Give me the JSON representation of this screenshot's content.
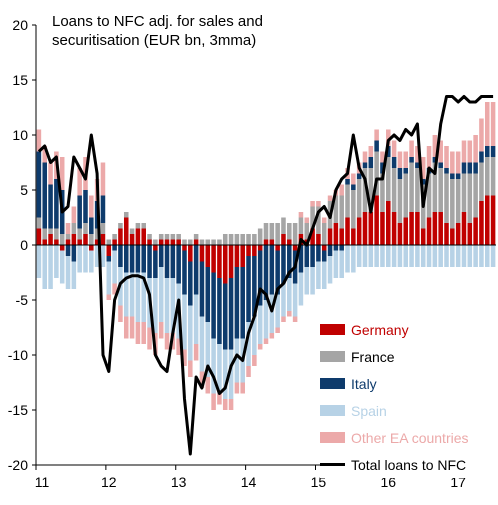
{
  "chart_data": {
    "type": "bar",
    "stacked": true,
    "title_lines": [
      "Loans to NFC adj. for sales and",
      "securitisation (EUR bn, 3mma)"
    ],
    "ylim": [
      -20,
      20
    ],
    "yticks": [
      20,
      15,
      10,
      5,
      0,
      -5,
      -10,
      -15,
      -20
    ],
    "x_year_labels": [
      "11",
      "12",
      "13",
      "14",
      "15",
      "16",
      "17"
    ],
    "x_start_year": 2011,
    "grid": false,
    "legend_position": "bottom-right",
    "series": [
      {
        "name": "Germany",
        "color": "#c00000",
        "values": [
          1.5,
          0.5,
          1.0,
          0.5,
          -0.5,
          0.5,
          1.0,
          0.5,
          1.0,
          -0.5,
          0.5,
          1.0,
          -1.0,
          0.5,
          1.5,
          2.5,
          1.0,
          1.5,
          1.5,
          0.5,
          -0.5,
          0.5,
          0.5,
          0.5,
          0.5,
          -0.5,
          -1.5,
          0.5,
          -1.5,
          -2.0,
          -2.5,
          -3.0,
          -3.5,
          -3.0,
          -2.0,
          -2.0,
          -1.0,
          -1.0,
          -0.5,
          0.5,
          0.5,
          -0.5,
          1.0,
          0.5,
          -0.5,
          1.0,
          0.5,
          1.5,
          1.0,
          -0.5,
          1.5,
          2.0,
          1.5,
          2.5,
          1.5,
          2.5,
          3.0,
          3.0,
          4.5,
          3.0,
          4.0,
          3.0,
          2.0,
          2.5,
          3.0,
          3.0,
          1.5,
          2.5,
          3.0,
          3.0,
          2.0,
          1.5,
          2.0,
          3.0,
          2.0,
          2.5,
          4.0,
          4.5,
          4.5
        ]
      },
      {
        "name": "France",
        "color": "#a5a5a5",
        "values": [
          1.0,
          1.0,
          0.5,
          1.0,
          1.0,
          0.5,
          1.0,
          1.0,
          1.0,
          1.0,
          1.0,
          1.0,
          0.5,
          0.5,
          0.5,
          0.5,
          0.5,
          0.5,
          0.5,
          0.5,
          0.5,
          0.5,
          0.5,
          0.5,
          0.5,
          0.5,
          0.5,
          0.5,
          0.5,
          0.5,
          0.5,
          0.5,
          1.0,
          1.0,
          1.0,
          1.0,
          1.0,
          1.0,
          1.5,
          1.5,
          1.5,
          2.0,
          1.5,
          1.5,
          2.0,
          1.5,
          1.5,
          2.0,
          2.5,
          2.0,
          2.5,
          2.5,
          3.0,
          3.0,
          3.5,
          3.5,
          4.0,
          4.0,
          4.0,
          3.5,
          4.0,
          4.0,
          4.0,
          4.0,
          4.5,
          4.0,
          4.0,
          4.0,
          4.5,
          4.0,
          4.5,
          4.5,
          4.0,
          3.5,
          4.5,
          4.0,
          3.5,
          3.5,
          3.5
        ]
      },
      {
        "name": "Italy",
        "color": "#0e3b6c",
        "values": [
          6.0,
          6.0,
          4.0,
          4.5,
          4.0,
          -1.0,
          -1.5,
          3.0,
          3.0,
          1.5,
          2.5,
          2.5,
          -0.5,
          -0.5,
          -2.0,
          -2.5,
          -2.5,
          -2.5,
          -2.5,
          -3.0,
          -2.5,
          -2.0,
          -3.0,
          -3.0,
          -3.5,
          -4.0,
          -4.0,
          -4.5,
          -5.0,
          -5.0,
          -6.0,
          -6.0,
          -6.0,
          -6.5,
          -6.5,
          -6.5,
          -6.0,
          -5.5,
          -5.0,
          -5.0,
          -4.5,
          -4.0,
          -3.5,
          -3.0,
          -3.0,
          -2.5,
          -2.0,
          -2.0,
          -1.5,
          -1.0,
          -1.0,
          -0.5,
          -0.5,
          0.5,
          0.5,
          0.5,
          0.5,
          1.0,
          1.0,
          1.0,
          1.0,
          1.0,
          1.0,
          0.5,
          0.5,
          0.5,
          0.5,
          0.5,
          0.5,
          0.5,
          0.5,
          0.5,
          0.5,
          1.0,
          1.0,
          1.0,
          1.0,
          1.0,
          1.0
        ]
      },
      {
        "name": "Spain",
        "color": "#b7d2e6",
        "values": [
          -3.0,
          -4.0,
          -4.0,
          -3.0,
          -3.0,
          -3.0,
          -2.5,
          -2.5,
          -2.5,
          -2.0,
          -2.0,
          -2.0,
          -3.0,
          -3.0,
          -3.5,
          -4.0,
          -4.0,
          -4.5,
          -4.5,
          -4.5,
          -5.0,
          -5.0,
          -5.0,
          -5.0,
          -5.0,
          -5.0,
          -5.0,
          -4.5,
          -5.0,
          -5.0,
          -5.0,
          -4.5,
          -4.5,
          -4.5,
          -4.0,
          -4.0,
          -4.0,
          -3.5,
          -3.5,
          -3.5,
          -3.5,
          -3.0,
          -3.0,
          -3.0,
          -3.0,
          -3.0,
          -2.5,
          -2.5,
          -2.5,
          -2.5,
          -2.5,
          -2.5,
          -2.5,
          -2.5,
          -2.5,
          -2.0,
          -2.0,
          -2.0,
          -2.0,
          -2.0,
          -2.0,
          -2.0,
          -2.0,
          -2.0,
          -2.0,
          -2.0,
          -2.0,
          -2.0,
          -2.0,
          -2.0,
          -2.0,
          -2.0,
          -2.0,
          -2.0,
          -2.0,
          -2.0,
          -2.0,
          -2.0,
          -2.0
        ]
      },
      {
        "name": "Other EA countries",
        "color": "#eca9a9",
        "values": [
          2.0,
          1.5,
          2.0,
          2.5,
          3.0,
          1.0,
          1.5,
          2.5,
          3.0,
          2.0,
          2.0,
          3.0,
          -0.5,
          -1.0,
          -1.5,
          -2.0,
          -2.0,
          -2.0,
          -2.0,
          -2.0,
          -2.0,
          -1.5,
          -1.5,
          -1.5,
          -1.5,
          -1.5,
          -1.5,
          -1.5,
          -1.5,
          -1.5,
          -1.5,
          -1.0,
          -1.0,
          -1.0,
          -1.0,
          -1.0,
          -1.0,
          -1.0,
          -0.5,
          -0.5,
          -0.5,
          -0.5,
          -0.5,
          -0.5,
          -0.5,
          0.5,
          0.5,
          0.5,
          0.5,
          0.5,
          0.5,
          0.5,
          1.0,
          1.0,
          1.0,
          1.0,
          1.0,
          1.0,
          1.0,
          1.0,
          1.5,
          1.5,
          1.5,
          1.5,
          1.5,
          1.5,
          2.0,
          2.0,
          2.0,
          2.0,
          2.0,
          2.0,
          2.0,
          2.0,
          2.0,
          2.5,
          3.0,
          4.0,
          4.0
        ]
      }
    ],
    "total_line": {
      "name": "Total loans to NFC",
      "color": "#000000",
      "values": [
        8.5,
        9.0,
        7.5,
        8.0,
        3.0,
        3.5,
        8.0,
        7.0,
        6.0,
        10.0,
        6.5,
        -10.0,
        -11.5,
        -5.0,
        -3.5,
        -3.0,
        -2.8,
        -2.8,
        -3.0,
        -4.5,
        -10.0,
        -11.0,
        -11.5,
        -8.0,
        -5.0,
        -14.0,
        -19.0,
        -12.0,
        -13.0,
        -11.0,
        -12.0,
        -13.5,
        -13.0,
        -11.0,
        -10.0,
        -10.5,
        -8.0,
        -6.5,
        -4.0,
        -4.5,
        -6.0,
        -4.0,
        -3.5,
        -2.5,
        -2.0,
        0.5,
        0.0,
        1.5,
        3.0,
        3.5,
        2.5,
        5.0,
        6.0,
        6.5,
        10.0,
        7.0,
        6.0,
        3.0,
        6.0,
        6.0,
        9.5,
        10.0,
        9.5,
        10.5,
        10.0,
        11.0,
        3.5,
        7.0,
        6.5,
        11.0,
        13.5,
        13.5,
        13.0,
        13.5,
        13.0,
        13.0,
        13.5,
        13.5,
        13.5
      ]
    }
  }
}
